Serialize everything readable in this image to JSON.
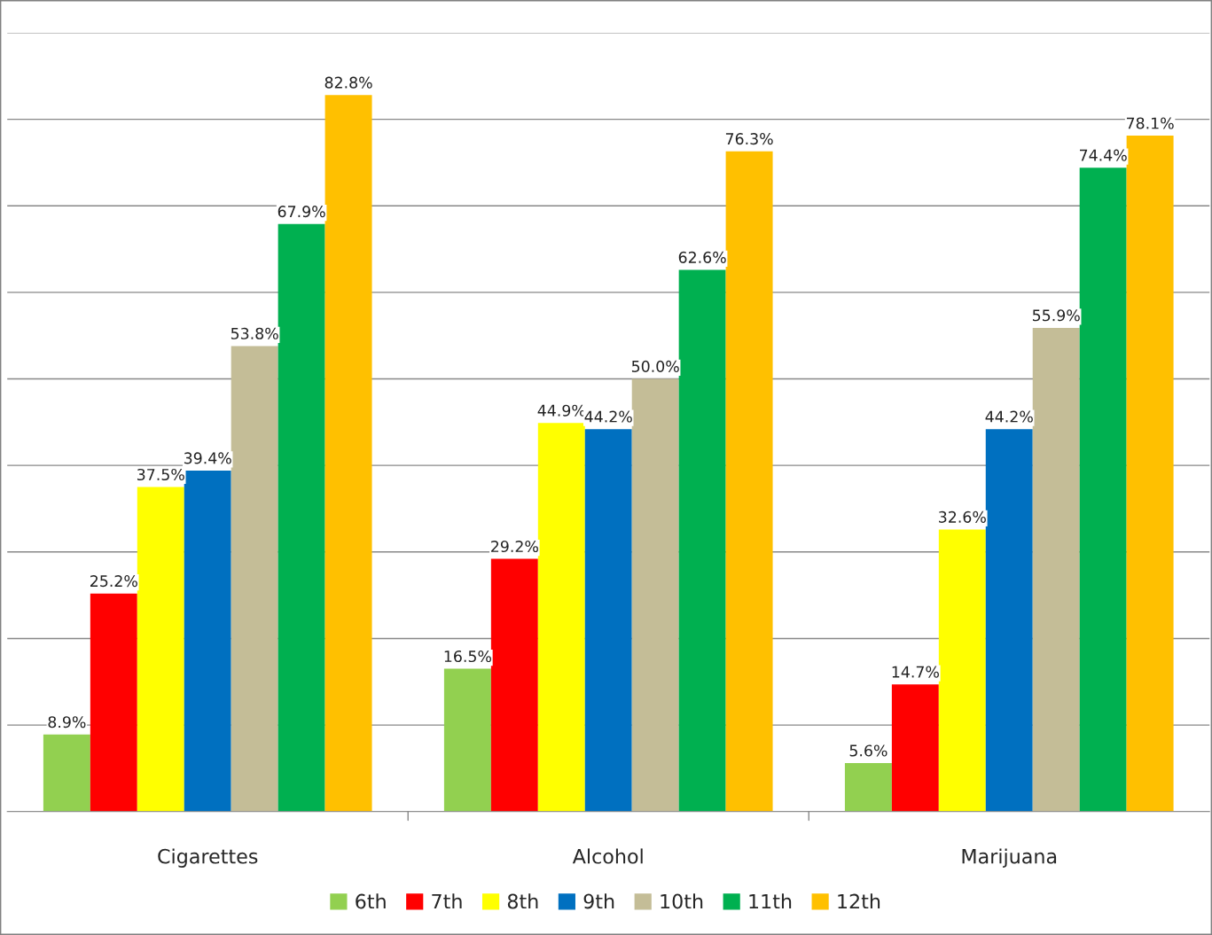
{
  "chart_data": {
    "type": "bar",
    "categories": [
      "Cigarettes",
      "Alcohol",
      "Marijuana"
    ],
    "series": [
      {
        "name": "6th",
        "color": "#92d050",
        "values": [
          8.9,
          16.5,
          5.6
        ],
        "value_labels": [
          "8.9%",
          "16.5%",
          "5.6%"
        ]
      },
      {
        "name": "7th",
        "color": "#ff0000",
        "values": [
          25.2,
          29.2,
          14.7
        ],
        "value_labels": [
          "25.2%",
          "29.2%",
          "14.7%"
        ]
      },
      {
        "name": "8th",
        "color": "#ffff00",
        "values": [
          37.5,
          44.9,
          32.6
        ],
        "value_labels": [
          "37.5%",
          "44.9%",
          "32.6%"
        ]
      },
      {
        "name": "9th",
        "color": "#0070c0",
        "values": [
          39.4,
          44.2,
          44.2
        ],
        "value_labels": [
          "39.4%",
          "44.2%",
          "44.2%"
        ]
      },
      {
        "name": "10th",
        "color": "#c4bd97",
        "values": [
          53.8,
          50.0,
          55.9
        ],
        "value_labels": [
          "53.8%",
          "50.0%",
          "55.9%"
        ]
      },
      {
        "name": "11th",
        "color": "#00b050",
        "values": [
          67.9,
          62.6,
          74.4
        ],
        "value_labels": [
          "67.9%",
          "62.6%",
          "74.4%"
        ]
      },
      {
        "name": "12th",
        "color": "#ffc000",
        "values": [
          82.8,
          76.3,
          78.1
        ],
        "value_labels": [
          "82.8%",
          "76.3%",
          "78.1%"
        ]
      }
    ],
    "ylim": [
      0,
      90
    ],
    "yticks": [
      {
        "value": 0,
        "label": null
      },
      {
        "value": 10,
        "label": null
      },
      {
        "value": 20,
        "label": null
      },
      {
        "value": 30,
        "label": null
      },
      {
        "value": 40,
        "label": null
      },
      {
        "value": 50,
        "label": null
      },
      {
        "value": 60,
        "label": null
      },
      {
        "value": 70,
        "label": null
      },
      {
        "value": 80,
        "label": null
      },
      {
        "value": 90,
        "label": null
      }
    ],
    "tick_labels": "x",
    "grid": "y",
    "legend": "bottom"
  }
}
